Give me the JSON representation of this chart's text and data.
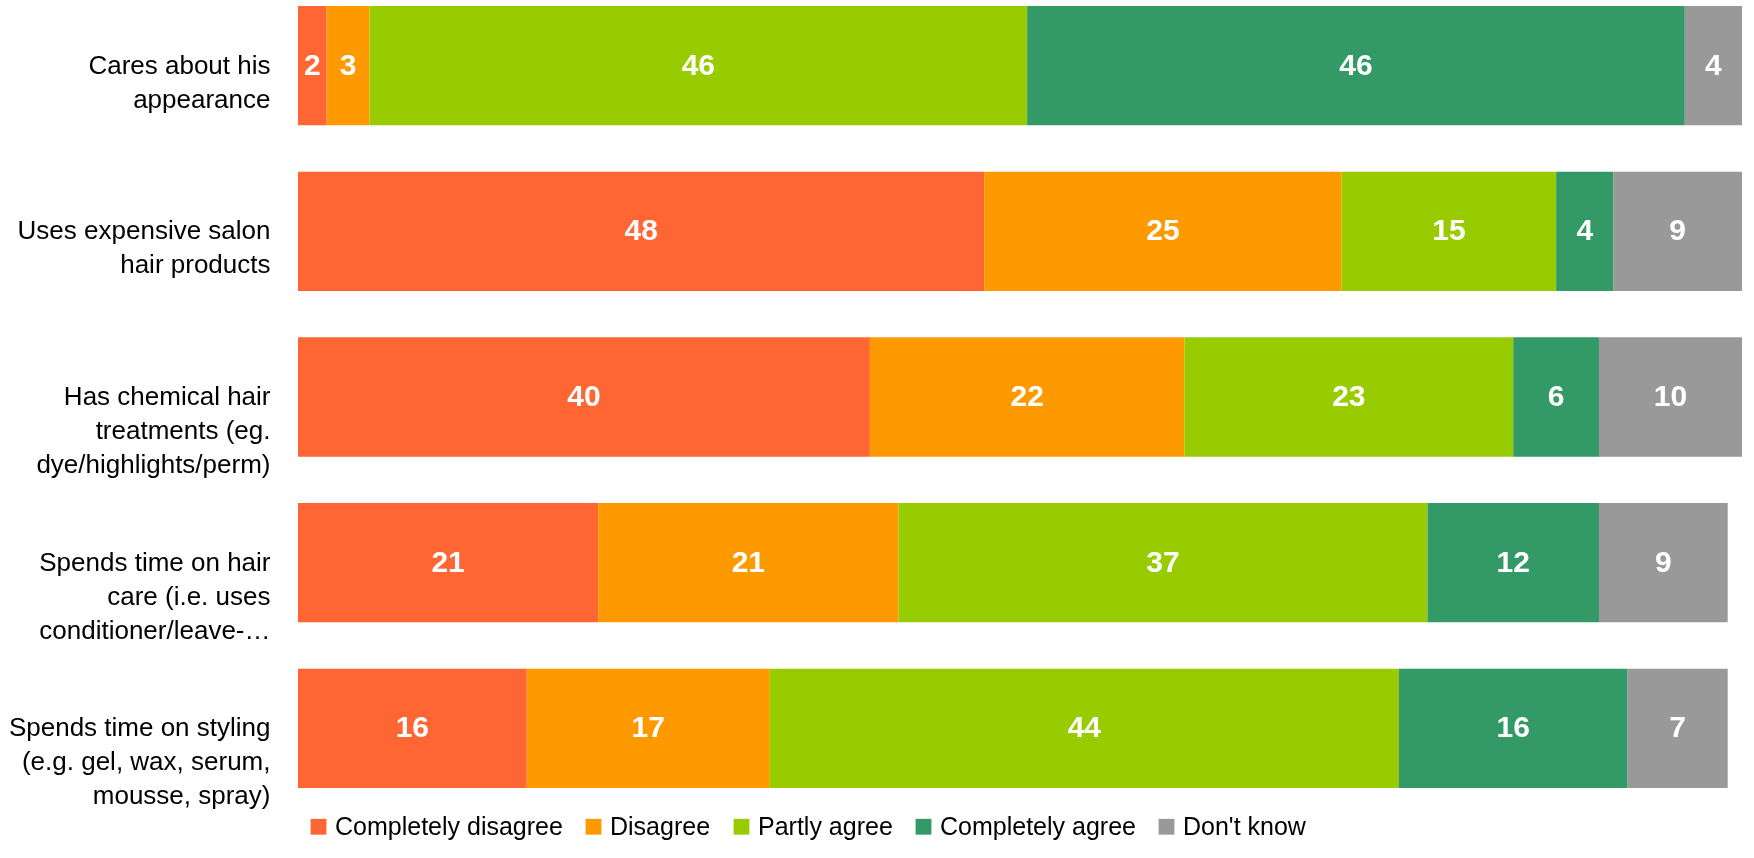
{
  "chart_data": {
    "type": "bar",
    "orientation": "horizontal",
    "stacked": true,
    "data_labels": true,
    "legend": "bottom",
    "grid": false,
    "categories": [
      "Cares about his appearance",
      "Uses expensive salon hair products",
      "Has chemical hair treatments (eg. dye/highlights/perm)",
      "Spends time on hair care (i.e. uses conditioner/leave-…",
      "Spends time on styling (e.g. gel, wax, serum, mousse, spray)"
    ],
    "series": [
      {
        "name": "Completely disagree",
        "color": "#ff6633",
        "values": [
          2,
          48,
          40,
          21,
          16
        ]
      },
      {
        "name": "Disagree",
        "color": "#ff9900",
        "values": [
          3,
          25,
          22,
          21,
          17
        ]
      },
      {
        "name": "Partly agree",
        "color": "#99cc00",
        "values": [
          46,
          15,
          23,
          37,
          44
        ]
      },
      {
        "name": "Completely agree",
        "color": "#339966",
        "values": [
          46,
          4,
          6,
          12,
          16
        ]
      },
      {
        "name": "Don't know",
        "color": "#999999",
        "values": [
          4,
          9,
          10,
          9,
          7
        ]
      }
    ]
  }
}
